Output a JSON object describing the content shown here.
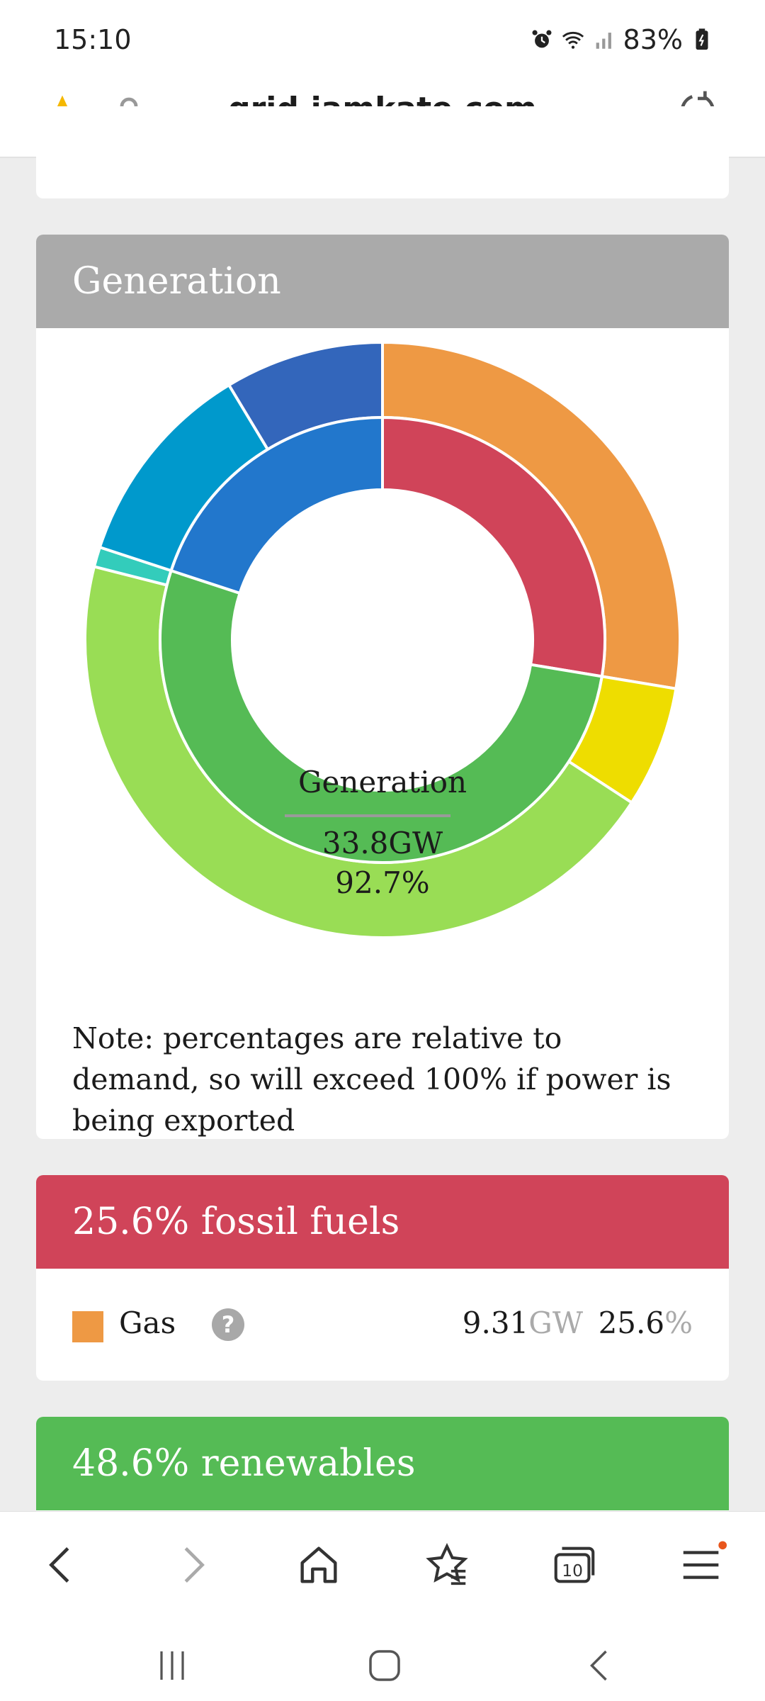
{
  "status": {
    "time": "15:10",
    "battery": "83%"
  },
  "browser": {
    "url": "grid.iamkate.com",
    "tabs_count": "10"
  },
  "generation": {
    "title": "Generation",
    "center_title": "Generation",
    "center_gw": "33.8GW",
    "center_pct": "92.7%",
    "note": "Note: percentages are relative to demand, so will exceed 100% if power is being exported"
  },
  "fossil": {
    "title": "25.6% fossil fuels",
    "rows": [
      {
        "label": "Gas",
        "gw": "9.31",
        "gw_unit": "GW",
        "pct": "25.6",
        "pct_unit": "%",
        "color": "#ee9944"
      }
    ]
  },
  "renewables": {
    "title": "48.6% renewables"
  },
  "chart_data": {
    "type": "donut",
    "inner_ring": [
      {
        "value": 25.6,
        "color": "#d04459"
      },
      {
        "value": 48.6,
        "color": "#55bb55"
      },
      {
        "value": 18.5,
        "color": "#2277cc"
      }
    ],
    "outer_ring": [
      {
        "value": 25.6,
        "color": "#ee9944"
      },
      {
        "value": 6.1,
        "color": "#eedd00"
      },
      {
        "value": 41.5,
        "color": "#99dd55"
      },
      {
        "value": 1.0,
        "color": "#33ccbb"
      },
      {
        "value": 10.5,
        "color": "#0099cc"
      },
      {
        "value": 8.0,
        "color": "#3366bb"
      }
    ]
  }
}
